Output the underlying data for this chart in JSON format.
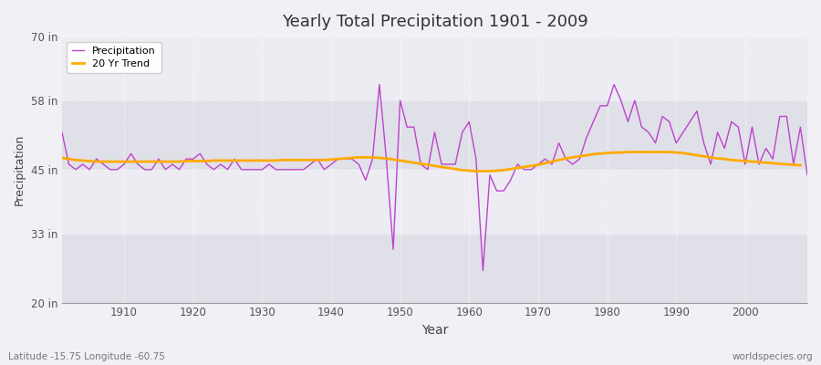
{
  "title": "Yearly Total Precipitation 1901 - 2009",
  "xlabel": "Year",
  "ylabel": "Precipitation",
  "lat_lon_label": "Latitude -15.75 Longitude -60.75",
  "watermark": "worldspecies.org",
  "ylim": [
    20,
    70
  ],
  "yticks": [
    20,
    33,
    45,
    58,
    70
  ],
  "ytick_labels": [
    "20 in",
    "33 in",
    "45 in",
    "58 in",
    "70 in"
  ],
  "xlim": [
    1901,
    2009
  ],
  "xticks": [
    1910,
    1920,
    1930,
    1940,
    1950,
    1960,
    1970,
    1980,
    1990,
    2000
  ],
  "precip_color": "#bb44cc",
  "trend_color": "#ffaa00",
  "bg_color": "#f0f0f5",
  "band_light": "#ececf2",
  "band_dark": "#e0e0e8",
  "years": [
    1901,
    1902,
    1903,
    1904,
    1905,
    1906,
    1907,
    1908,
    1909,
    1910,
    1911,
    1912,
    1913,
    1914,
    1915,
    1916,
    1917,
    1918,
    1919,
    1920,
    1921,
    1922,
    1923,
    1924,
    1925,
    1926,
    1927,
    1928,
    1929,
    1930,
    1931,
    1932,
    1933,
    1934,
    1935,
    1936,
    1937,
    1938,
    1939,
    1940,
    1941,
    1942,
    1943,
    1944,
    1945,
    1946,
    1947,
    1948,
    1949,
    1950,
    1951,
    1952,
    1953,
    1954,
    1955,
    1956,
    1957,
    1958,
    1959,
    1960,
    1961,
    1962,
    1963,
    1964,
    1965,
    1966,
    1967,
    1968,
    1969,
    1970,
    1971,
    1972,
    1973,
    1974,
    1975,
    1976,
    1977,
    1978,
    1979,
    1980,
    1981,
    1982,
    1983,
    1984,
    1985,
    1986,
    1987,
    1988,
    1989,
    1990,
    1991,
    1992,
    1993,
    1994,
    1995,
    1996,
    1997,
    1998,
    1999,
    2000,
    2001,
    2002,
    2003,
    2004,
    2005,
    2006,
    2007,
    2008,
    2009
  ],
  "precip": [
    52,
    46,
    45,
    46,
    45,
    47,
    46,
    45,
    45,
    46,
    48,
    46,
    45,
    45,
    47,
    45,
    46,
    45,
    47,
    47,
    48,
    46,
    45,
    46,
    45,
    47,
    45,
    45,
    45,
    45,
    46,
    45,
    45,
    45,
    45,
    45,
    46,
    47,
    45,
    46,
    47,
    47,
    47,
    46,
    43,
    47,
    61,
    47,
    30,
    58,
    53,
    53,
    46,
    45,
    52,
    46,
    46,
    46,
    52,
    54,
    47,
    26,
    44,
    41,
    41,
    43,
    46,
    45,
    45,
    46,
    47,
    46,
    50,
    47,
    46,
    47,
    51,
    54,
    57,
    57,
    61,
    58,
    54,
    58,
    53,
    52,
    50,
    55,
    54,
    50,
    52,
    54,
    56,
    50,
    46,
    52,
    49,
    54,
    53,
    46,
    53,
    46,
    49,
    47,
    55,
    55,
    46,
    53,
    44
  ],
  "trend": [
    47.2,
    47.0,
    46.8,
    46.7,
    46.6,
    46.5,
    46.5,
    46.5,
    46.5,
    46.5,
    46.5,
    46.5,
    46.5,
    46.5,
    46.5,
    46.5,
    46.5,
    46.5,
    46.6,
    46.6,
    46.6,
    46.6,
    46.7,
    46.7,
    46.7,
    46.7,
    46.7,
    46.7,
    46.7,
    46.7,
    46.7,
    46.7,
    46.8,
    46.8,
    46.8,
    46.8,
    46.8,
    46.8,
    46.8,
    46.9,
    47.0,
    47.1,
    47.2,
    47.3,
    47.3,
    47.3,
    47.2,
    47.1,
    46.9,
    46.7,
    46.5,
    46.3,
    46.1,
    45.9,
    45.7,
    45.5,
    45.3,
    45.1,
    44.9,
    44.8,
    44.7,
    44.7,
    44.7,
    44.8,
    44.9,
    45.1,
    45.3,
    45.5,
    45.7,
    45.9,
    46.2,
    46.5,
    46.8,
    47.1,
    47.3,
    47.5,
    47.7,
    47.9,
    48.0,
    48.1,
    48.2,
    48.2,
    48.3,
    48.3,
    48.3,
    48.3,
    48.3,
    48.3,
    48.3,
    48.2,
    48.1,
    47.9,
    47.7,
    47.5,
    47.3,
    47.1,
    47.0,
    46.8,
    46.7,
    46.6,
    46.5,
    46.4,
    46.3,
    46.2,
    46.1,
    46.0,
    45.9,
    45.8,
    null
  ]
}
